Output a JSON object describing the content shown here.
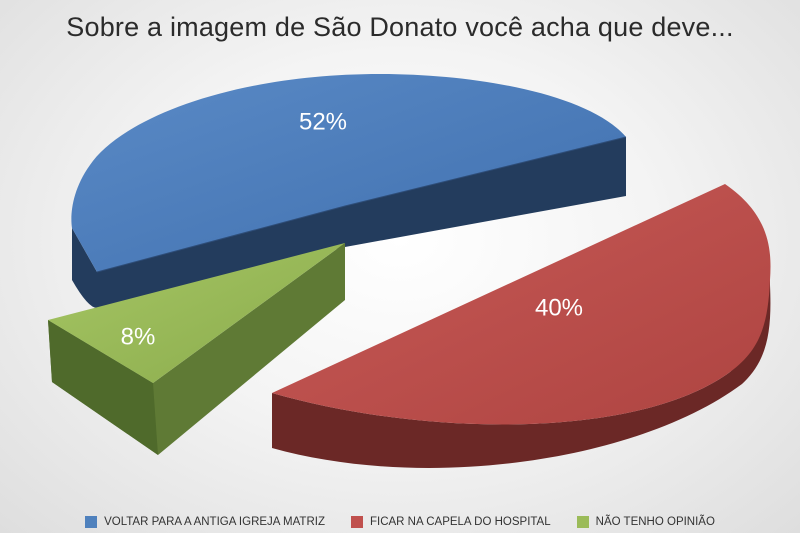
{
  "chart_data": {
    "type": "pie",
    "title": "Sobre a imagem de São Donato você acha que deve...",
    "slices": [
      {
        "label": "VOLTAR PARA A ANTIGA IGREJA MATRIZ",
        "value": 52,
        "value_label": "52%",
        "color": "#4f81bd",
        "side_color": "#233c5d"
      },
      {
        "label": "FICAR NA CAPELA DO HOSPITAL",
        "value": 40,
        "value_label": "40%",
        "color": "#c0504d",
        "side_color": "#5c2120"
      },
      {
        "label": "NÃO TENHO OPINIÃO",
        "value": 8,
        "value_label": "8%",
        "color": "#9bbb59",
        "side_color": "#5f7a35"
      }
    ],
    "legend_position": "bottom",
    "style": "3d-exploded"
  }
}
